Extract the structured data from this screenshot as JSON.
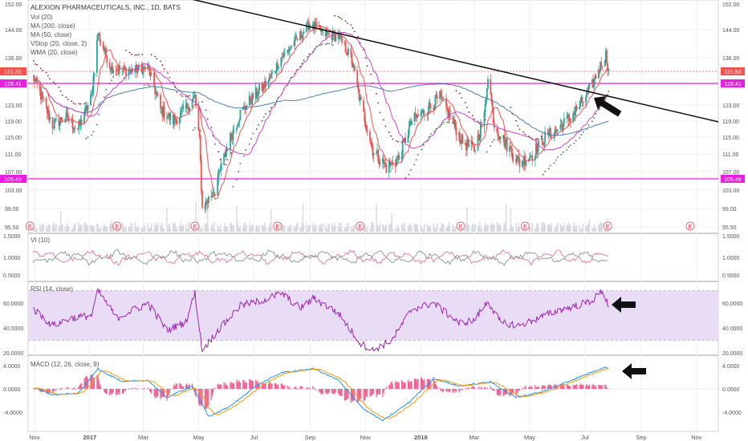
{
  "chart_data": {
    "type": "candlestick",
    "title": "ALEXION PHARMACEUTICALS, INC., 1D, BATS",
    "indicators": [
      "Vol (20)",
      "MA (200, close)",
      "MA (50, close)",
      "VStop (20, close, 2)",
      "WMA (20, close)"
    ],
    "price_axis": {
      "ticks": [
        "152.00",
        "144.00",
        "136.00",
        "131.83",
        "128.41",
        "123.00",
        "119.00",
        "115.00",
        "111.00",
        "107.00",
        "105.49",
        "103.00",
        "99.00",
        "95.50"
      ],
      "last_price": 131.83,
      "levels": [
        128.41,
        105.49
      ]
    },
    "earnings_marker": "E",
    "earnings_months": [
      "Nov",
      "Jan",
      "Apr",
      "Jul",
      "Oct",
      "Jan",
      "Apr",
      "Jul",
      "Oct"
    ],
    "x_ticks": [
      "Nov",
      "2017",
      "Mar",
      "May",
      "Jul",
      "Sep",
      "Nov",
      "2018",
      "Mar",
      "May",
      "Jul",
      "Sep",
      "Nov"
    ],
    "price_series": [
      {
        "d": "2016-10-31",
        "p": 130
      },
      {
        "d": "2016-11-21",
        "p": 118
      },
      {
        "d": "2016-12-05",
        "p": 120
      },
      {
        "d": "2016-12-19",
        "p": 117
      },
      {
        "d": "2017-01-03",
        "p": 125
      },
      {
        "d": "2017-01-10",
        "p": 143
      },
      {
        "d": "2017-01-24",
        "p": 133
      },
      {
        "d": "2017-02-14",
        "p": 132
      },
      {
        "d": "2017-03-06",
        "p": 133
      },
      {
        "d": "2017-03-20",
        "p": 122
      },
      {
        "d": "2017-04-03",
        "p": 119
      },
      {
        "d": "2017-04-17",
        "p": 122
      },
      {
        "d": "2017-04-27",
        "p": 125
      },
      {
        "d": "2017-05-02",
        "p": 114
      },
      {
        "d": "2017-05-05",
        "p": 99
      },
      {
        "d": "2017-05-19",
        "p": 103
      },
      {
        "d": "2017-06-02",
        "p": 113
      },
      {
        "d": "2017-06-16",
        "p": 121
      },
      {
        "d": "2017-06-30",
        "p": 125
      },
      {
        "d": "2017-07-17",
        "p": 129
      },
      {
        "d": "2017-07-31",
        "p": 136
      },
      {
        "d": "2017-08-14",
        "p": 140
      },
      {
        "d": "2017-09-01",
        "p": 146
      },
      {
        "d": "2017-09-15",
        "p": 143
      },
      {
        "d": "2017-10-02",
        "p": 142
      },
      {
        "d": "2017-10-16",
        "p": 136
      },
      {
        "d": "2017-10-26",
        "p": 124
      },
      {
        "d": "2017-11-09",
        "p": 112
      },
      {
        "d": "2017-11-24",
        "p": 108
      },
      {
        "d": "2017-12-08",
        "p": 110
      },
      {
        "d": "2017-12-22",
        "p": 119
      },
      {
        "d": "2018-01-08",
        "p": 122
      },
      {
        "d": "2018-01-22",
        "p": 125
      },
      {
        "d": "2018-02-05",
        "p": 119
      },
      {
        "d": "2018-02-15",
        "p": 114
      },
      {
        "d": "2018-03-01",
        "p": 112
      },
      {
        "d": "2018-03-12",
        "p": 120
      },
      {
        "d": "2018-03-16",
        "p": 131
      },
      {
        "d": "2018-03-23",
        "p": 118
      },
      {
        "d": "2018-04-06",
        "p": 113
      },
      {
        "d": "2018-04-20",
        "p": 109
      },
      {
        "d": "2018-05-04",
        "p": 111
      },
      {
        "d": "2018-05-18",
        "p": 115
      },
      {
        "d": "2018-06-01",
        "p": 117
      },
      {
        "d": "2018-06-15",
        "p": 120
      },
      {
        "d": "2018-06-29",
        "p": 124
      },
      {
        "d": "2018-07-09",
        "p": 128
      },
      {
        "d": "2018-07-17",
        "p": 133
      },
      {
        "d": "2018-07-24",
        "p": 137
      },
      {
        "d": "2018-07-27",
        "p": 131.83
      }
    ],
    "trendline": {
      "from": {
        "d": "2017-03-01",
        "p": 157
      },
      "to": {
        "d": "2018-12-01",
        "p": 118.5
      }
    },
    "vi": {
      "label": "VI (10)",
      "ticks": [
        "1.5000",
        "1.0000",
        "0.5000"
      ]
    },
    "rsi": {
      "label": "RSI (14, close)",
      "ticks": [
        "60.0000",
        "40.0000",
        "20.0000"
      ],
      "band": [
        30,
        70
      ],
      "series": [
        {
          "d": "2016-10-31",
          "p": 55
        },
        {
          "d": "2016-11-21",
          "p": 42
        },
        {
          "d": "2016-12-12",
          "p": 48
        },
        {
          "d": "2017-01-03",
          "p": 50
        },
        {
          "d": "2017-01-10",
          "p": 70
        },
        {
          "d": "2017-01-31",
          "p": 48
        },
        {
          "d": "2017-03-06",
          "p": 60
        },
        {
          "d": "2017-03-27",
          "p": 38
        },
        {
          "d": "2017-04-17",
          "p": 45
        },
        {
          "d": "2017-04-27",
          "p": 68
        },
        {
          "d": "2017-05-05",
          "p": 22
        },
        {
          "d": "2017-05-19",
          "p": 35
        },
        {
          "d": "2017-06-16",
          "p": 58
        },
        {
          "d": "2017-07-10",
          "p": 62
        },
        {
          "d": "2017-07-31",
          "p": 68
        },
        {
          "d": "2017-08-21",
          "p": 56
        },
        {
          "d": "2017-09-05",
          "p": 64
        },
        {
          "d": "2017-10-02",
          "p": 52
        },
        {
          "d": "2017-10-26",
          "p": 28
        },
        {
          "d": "2017-11-09",
          "p": 22
        },
        {
          "d": "2017-11-30",
          "p": 30
        },
        {
          "d": "2017-12-22",
          "p": 55
        },
        {
          "d": "2018-01-15",
          "p": 60
        },
        {
          "d": "2018-02-12",
          "p": 44
        },
        {
          "d": "2018-03-01",
          "p": 46
        },
        {
          "d": "2018-03-16",
          "p": 62
        },
        {
          "d": "2018-03-30",
          "p": 44
        },
        {
          "d": "2018-04-20",
          "p": 42
        },
        {
          "d": "2018-05-11",
          "p": 48
        },
        {
          "d": "2018-06-01",
          "p": 54
        },
        {
          "d": "2018-06-22",
          "p": 58
        },
        {
          "d": "2018-07-09",
          "p": 62
        },
        {
          "d": "2018-07-20",
          "p": 70
        },
        {
          "d": "2018-07-27",
          "p": 58
        }
      ]
    },
    "macd": {
      "label": "MACD (12, 26, close, 9)",
      "ticks": [
        "4.0000",
        "0.0000",
        "-4.0000"
      ],
      "series": [
        {
          "d": "2016-10-31",
          "p": 0.2
        },
        {
          "d": "2016-11-21",
          "p": -1
        },
        {
          "d": "2016-12-19",
          "p": -0.8
        },
        {
          "d": "2017-01-10",
          "p": 3.5
        },
        {
          "d": "2017-02-06",
          "p": 1.2
        },
        {
          "d": "2017-03-06",
          "p": 1.5
        },
        {
          "d": "2017-03-27",
          "p": -1.5
        },
        {
          "d": "2017-04-24",
          "p": 0.5
        },
        {
          "d": "2017-05-12",
          "p": -4.8
        },
        {
          "d": "2017-06-05",
          "p": -3
        },
        {
          "d": "2017-07-03",
          "p": 0.5
        },
        {
          "d": "2017-07-31",
          "p": 2.8
        },
        {
          "d": "2017-09-05",
          "p": 3.5
        },
        {
          "d": "2017-10-02",
          "p": 1.5
        },
        {
          "d": "2017-10-30",
          "p": -3.5
        },
        {
          "d": "2017-11-20",
          "p": -5.5
        },
        {
          "d": "2017-12-18",
          "p": -2.5
        },
        {
          "d": "2018-01-15",
          "p": 1.8
        },
        {
          "d": "2018-02-12",
          "p": 0.5
        },
        {
          "d": "2018-03-19",
          "p": 1.2
        },
        {
          "d": "2018-04-16",
          "p": -1.5
        },
        {
          "d": "2018-05-14",
          "p": -0.5
        },
        {
          "d": "2018-06-11",
          "p": 1.2
        },
        {
          "d": "2018-07-02",
          "p": 2.5
        },
        {
          "d": "2018-07-23",
          "p": 3.8
        },
        {
          "d": "2018-07-27",
          "p": 3.5
        }
      ]
    }
  },
  "colors": {
    "up": "#26a69a",
    "down": "#ef5350",
    "level": "#e91ee0",
    "rsi": "#9c27b0",
    "rsi_band": "#e9dcf5",
    "macd_line": "#2196f3",
    "signal": "#ff9800",
    "ma200": "#4a7fb5",
    "ma50": "#cc44cc",
    "wma": "#ef5350",
    "vstop": "#2e7d32"
  },
  "annotations": [
    "arrow-icon",
    "arrow-icon",
    "arrow-icon"
  ]
}
